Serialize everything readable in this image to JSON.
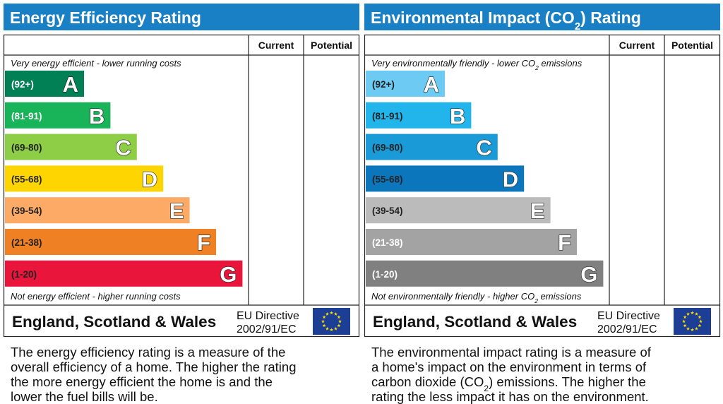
{
  "panels": [
    {
      "title": [
        "Energy Efficiency Rating"
      ],
      "columns": [
        "Current",
        "Potential"
      ],
      "top_note": [
        "Very energy efficient - lower running costs"
      ],
      "bottom_note": [
        "Not energy efficient - higher running costs"
      ],
      "bands": [
        {
          "range": "(92+)",
          "letter": "A",
          "color": "#008054",
          "text_color": "#ffffff"
        },
        {
          "range": "(81-91)",
          "letter": "B",
          "color": "#19b459",
          "text_color": "#ffffff"
        },
        {
          "range": "(69-80)",
          "letter": "C",
          "color": "#8dce46",
          "text_color": "#222222"
        },
        {
          "range": "(55-68)",
          "letter": "D",
          "color": "#ffd500",
          "text_color": "#222222"
        },
        {
          "range": "(39-54)",
          "letter": "E",
          "color": "#fcaa65",
          "text_color": "#222222"
        },
        {
          "range": "(21-38)",
          "letter": "F",
          "color": "#ef8023",
          "text_color": "#222222"
        },
        {
          "range": "(1-20)",
          "letter": "G",
          "color": "#e9153b",
          "text_color": "#222222"
        }
      ],
      "region": "England, Scotland & Wales",
      "directive": [
        "EU Directive",
        "2002/91/EC"
      ],
      "description": [
        [
          "The energy efficiency rating is a measure of the"
        ],
        [
          "overall efficiency of a home. The higher the rating"
        ],
        [
          "the more energy efficient the home is and the"
        ],
        [
          "lower the fuel bills will be."
        ]
      ]
    },
    {
      "title": [
        "Environmental Impact (CO",
        "2",
        ") Rating"
      ],
      "columns": [
        "Current",
        "Potential"
      ],
      "top_note": [
        "Very environmentally friendly - lower CO",
        "2",
        " emissions"
      ],
      "bottom_note": [
        "Not environmentally friendly - higher CO",
        "2",
        " emissions"
      ],
      "bands": [
        {
          "range": "(92+)",
          "letter": "A",
          "color": "#6dcbf3",
          "text_color": "#222222"
        },
        {
          "range": "(81-91)",
          "letter": "B",
          "color": "#22b5ec",
          "text_color": "#222222"
        },
        {
          "range": "(69-80)",
          "letter": "C",
          "color": "#1a9bd7",
          "text_color": "#222222"
        },
        {
          "range": "(55-68)",
          "letter": "D",
          "color": "#0c76bd",
          "text_color": "#222222"
        },
        {
          "range": "(39-54)",
          "letter": "E",
          "color": "#bbbbbb",
          "text_color": "#222222"
        },
        {
          "range": "(21-38)",
          "letter": "F",
          "color": "#a3a3a3",
          "text_color": "#ffffff"
        },
        {
          "range": "(1-20)",
          "letter": "G",
          "color": "#808080",
          "text_color": "#ffffff"
        }
      ],
      "region": "England, Scotland & Wales",
      "directive": [
        "EU Directive",
        "2002/91/EC"
      ],
      "description": [
        [
          "The environmental impact rating is a measure of"
        ],
        [
          "a home's impact on the environment in terms of"
        ],
        [
          "carbon dioxide (CO",
          "2",
          ") emissions. The higher the"
        ],
        [
          "rating the less impact it has on the environment."
        ]
      ]
    }
  ]
}
